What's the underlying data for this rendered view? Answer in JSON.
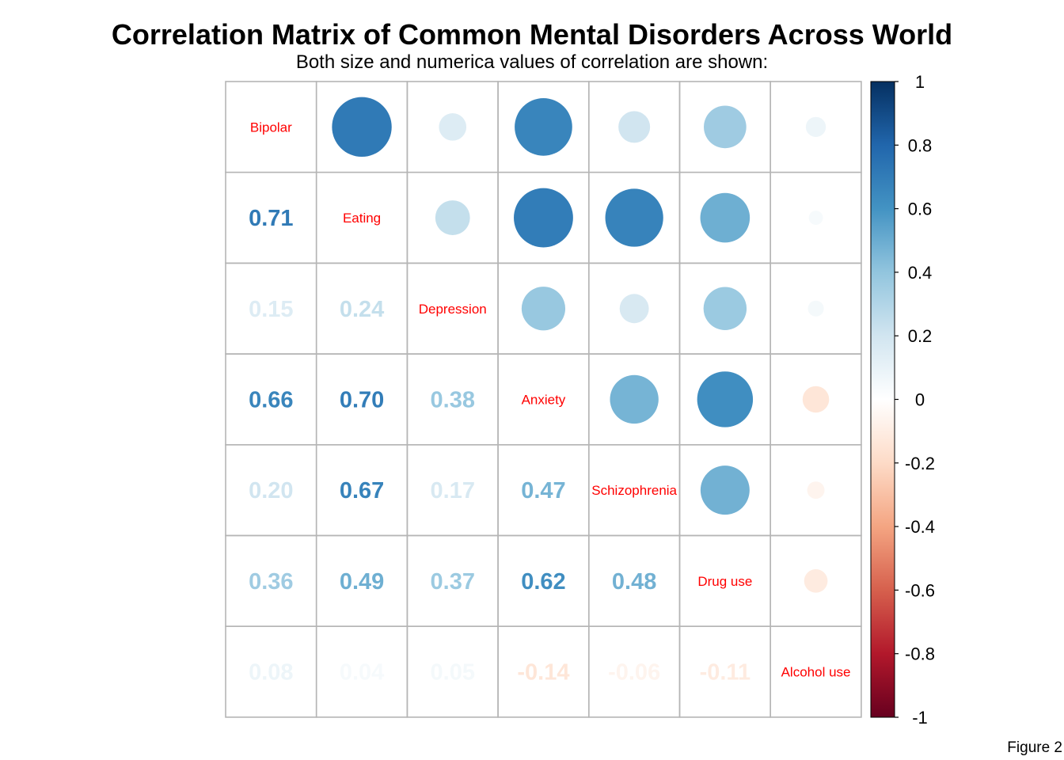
{
  "title": "Correlation Matrix of Common Mental Disorders Across World",
  "subtitle": "Both size and numerica values of correlation are shown:",
  "caption": "Figure 2",
  "chart_data": {
    "type": "heatmap",
    "style": "upper triangle: circles (size & color = correlation); lower triangle: numbers; diagonal: variable names",
    "variables": [
      "Bipolar",
      "Eating",
      "Depression",
      "Anxiety",
      "Schizophrenia",
      "Drug use",
      "Alcohol use"
    ],
    "matrix": [
      [
        1.0,
        0.71,
        0.15,
        0.66,
        0.2,
        0.36,
        0.08
      ],
      [
        0.71,
        1.0,
        0.24,
        0.7,
        0.67,
        0.49,
        0.04
      ],
      [
        0.15,
        0.24,
        1.0,
        0.38,
        0.17,
        0.37,
        0.05
      ],
      [
        0.66,
        0.7,
        0.38,
        1.0,
        0.47,
        0.62,
        -0.14
      ],
      [
        0.2,
        0.67,
        0.17,
        0.47,
        1.0,
        0.48,
        -0.06
      ],
      [
        0.36,
        0.49,
        0.37,
        0.62,
        0.48,
        1.0,
        -0.11
      ],
      [
        0.08,
        0.04,
        0.05,
        -0.14,
        -0.06,
        -0.11,
        1.0
      ]
    ],
    "value_labels": [
      [
        "",
        "",
        "",
        "",
        "",
        "",
        ""
      ],
      [
        "0.71",
        "",
        "",
        "",
        "",
        "",
        ""
      ],
      [
        "0.15",
        "0.24",
        "",
        "",
        "",
        "",
        ""
      ],
      [
        "0.66",
        "0.70",
        "0.38",
        "",
        "",
        "",
        ""
      ],
      [
        "0.20",
        "0.67",
        "0.17",
        "0.47",
        "",
        "",
        ""
      ],
      [
        "0.36",
        "0.49",
        "0.37",
        "0.62",
        "0.48",
        "",
        ""
      ],
      [
        "0.08",
        "0.04",
        "0.05",
        "-0.14",
        "-0.06",
        "-0.11",
        ""
      ]
    ],
    "colorbar": {
      "range": [
        -1,
        1
      ],
      "ticks": [
        1,
        0.8,
        0.6,
        0.4,
        0.2,
        0,
        -0.2,
        -0.4,
        -0.6,
        -0.8,
        -1
      ],
      "tick_labels": [
        "1",
        "0.8",
        "0.6",
        "0.4",
        "0.2",
        "0",
        "-0.2",
        "-0.4",
        "-0.6",
        "-0.8",
        "-1"
      ],
      "palette": [
        "#67001F",
        "#B2182B",
        "#D6604D",
        "#F4A582",
        "#FDDBC7",
        "#FFFFFF",
        "#D1E5F0",
        "#92C5DE",
        "#4393C3",
        "#2166AC",
        "#053061"
      ]
    },
    "label_color": "#FF0000",
    "grid": true
  }
}
